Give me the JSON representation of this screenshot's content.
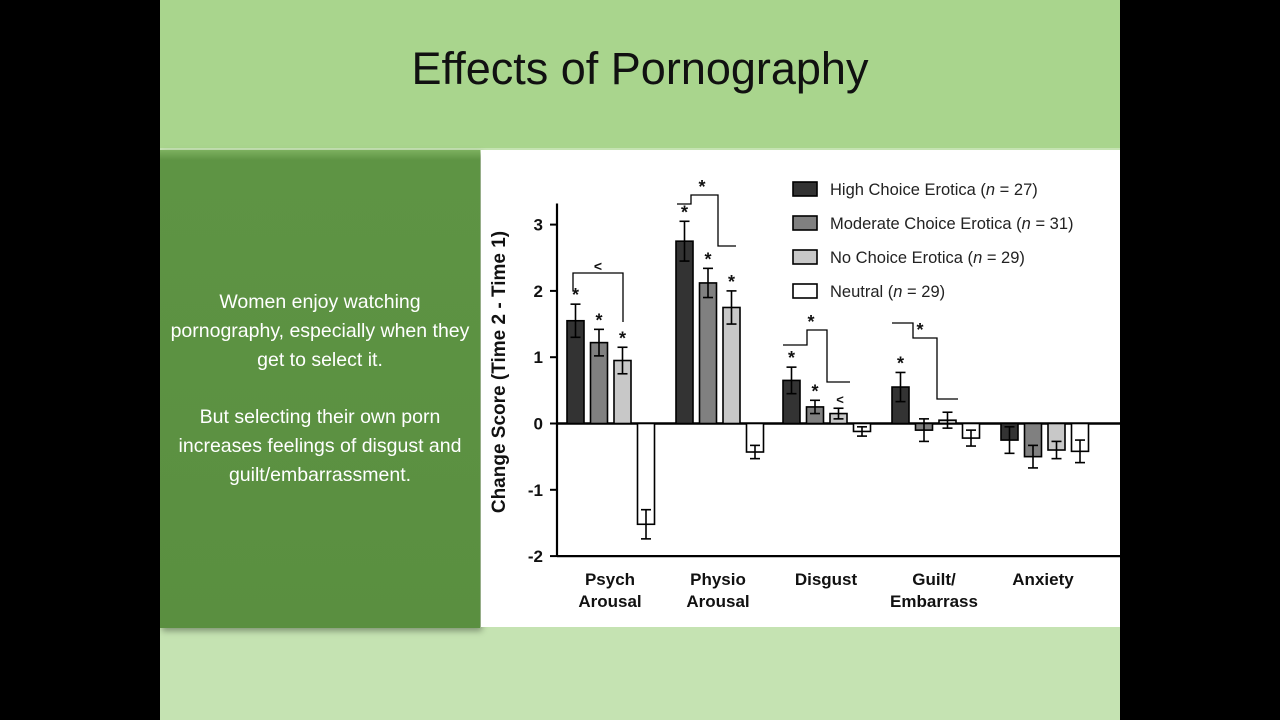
{
  "slide": {
    "title": "Effects of Pornography",
    "side_paragraphs": [
      "Women enjoy watching pornography, especially when they get to select it.",
      "But selecting their own porn increases feelings of disgust and guilt/embarrassment."
    ]
  },
  "colors": {
    "title_band": "#a9d58d",
    "slide_bg": "#c5e3b2",
    "side_panel": "#5e9444"
  },
  "chart_data": {
    "type": "bar",
    "title": "",
    "ylabel": "Change Score (Time 2 - Time 1)",
    "xlabel": "",
    "ylim": [
      -2,
      3.5
    ],
    "yticks": [
      -2,
      -1,
      0,
      1,
      2,
      3
    ],
    "categories": [
      [
        "Psych",
        "Arousal"
      ],
      [
        "Physio",
        "Arousal"
      ],
      [
        "Disgust"
      ],
      [
        "Guilt/",
        "Embarrass"
      ],
      [
        "Anxiety"
      ]
    ],
    "series": [
      {
        "name": "High Choice Erotica",
        "n": "27",
        "color": "#333333",
        "values": [
          1.55,
          2.75,
          0.65,
          0.55,
          -0.25
        ],
        "errors": [
          0.25,
          0.3,
          0.2,
          0.22,
          0.2
        ]
      },
      {
        "name": "Moderate Choice Erotica",
        "n": "31",
        "color": "#808080",
        "values": [
          1.22,
          2.12,
          0.25,
          -0.1,
          -0.5
        ],
        "errors": [
          0.2,
          0.22,
          0.1,
          0.17,
          0.17
        ]
      },
      {
        "name": "No Choice Erotica",
        "n": "29",
        "color": "#c8c8c8",
        "values": [
          0.95,
          1.75,
          0.15,
          0.05,
          -0.4
        ],
        "errors": [
          0.2,
          0.25,
          0.08,
          0.12,
          0.13
        ]
      },
      {
        "name": "Neutral",
        "n": "29",
        "color": "#ffffff",
        "values": [
          -1.52,
          -0.43,
          -0.12,
          -0.22,
          -0.42
        ],
        "errors": [
          0.22,
          0.1,
          0.07,
          0.12,
          0.17
        ]
      }
    ],
    "star_markers": [
      [
        0,
        0
      ],
      [
        0,
        1
      ],
      [
        0,
        2
      ],
      [
        1,
        0
      ],
      [
        1,
        1
      ],
      [
        1,
        2
      ],
      [
        2,
        0
      ],
      [
        2,
        1
      ],
      [
        3,
        0
      ]
    ],
    "brackets": [
      {
        "category": 0,
        "symbol": "<"
      },
      {
        "category": 1,
        "symbol": "*"
      },
      {
        "category": 2,
        "symbol": "*"
      },
      {
        "category": 2,
        "symbol": "<"
      },
      {
        "category": 3,
        "symbol": "*"
      }
    ],
    "legend_position": "top-right",
    "grid": false
  }
}
